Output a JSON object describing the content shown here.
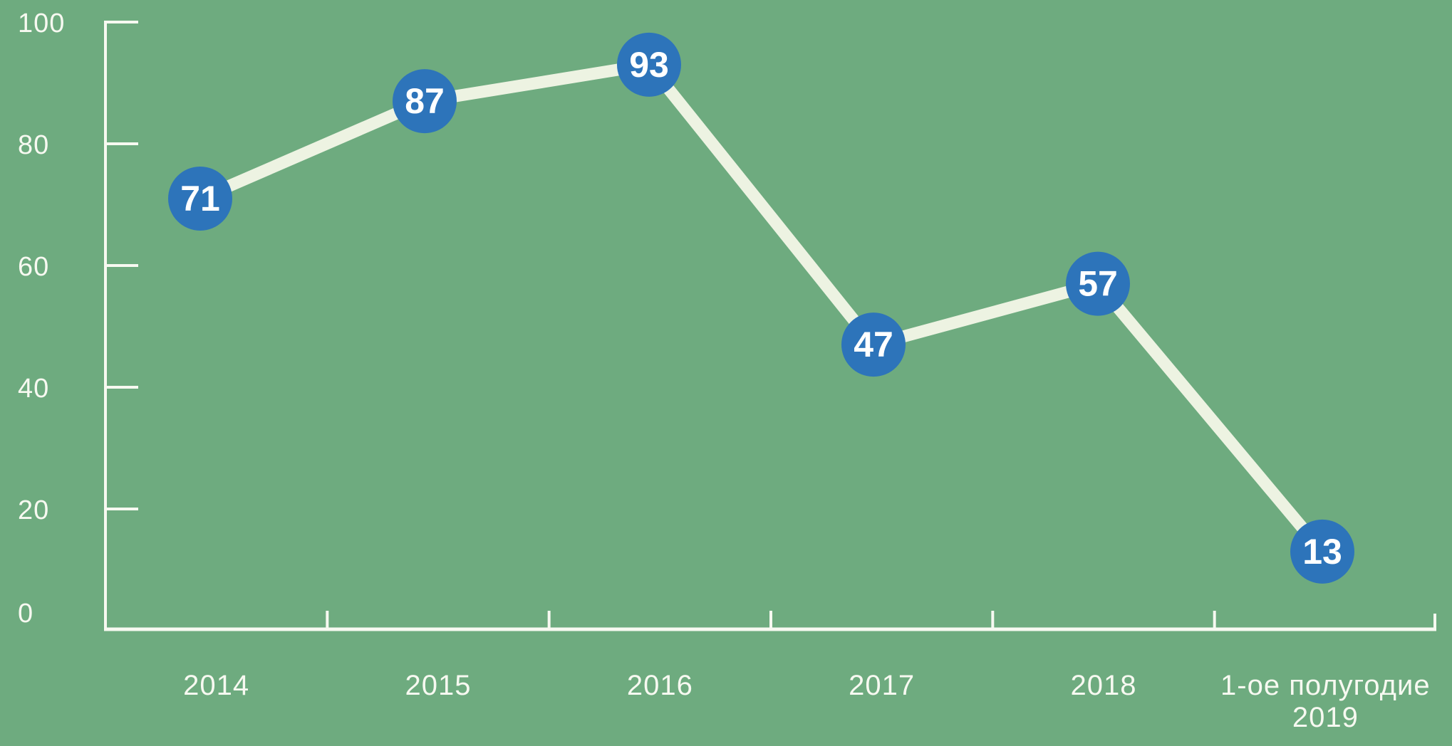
{
  "chart_data": {
    "type": "line",
    "title": "",
    "xlabel": "",
    "ylabel": "",
    "categories": [
      "2014",
      "2015",
      "2016",
      "2017",
      "2018",
      "1-ое полугодие 2019"
    ],
    "values": [
      71,
      87,
      93,
      47,
      57,
      13
    ],
    "data_labels": [
      "71",
      "87",
      "93",
      "47",
      "57",
      "13"
    ],
    "ylim": [
      0,
      100
    ],
    "yticks": [
      0,
      20,
      40,
      60,
      80,
      100
    ],
    "grid": false,
    "legend": false,
    "marker_style": "filled-circle-with-value",
    "colors": {
      "background": "#6EAB7F",
      "axis": "#F7F9F1",
      "tick_label_text": "#F7F9F1",
      "line": "#EDF3E2",
      "marker_fill": "#2D74BA",
      "marker_text": "#FFFFFF"
    }
  }
}
